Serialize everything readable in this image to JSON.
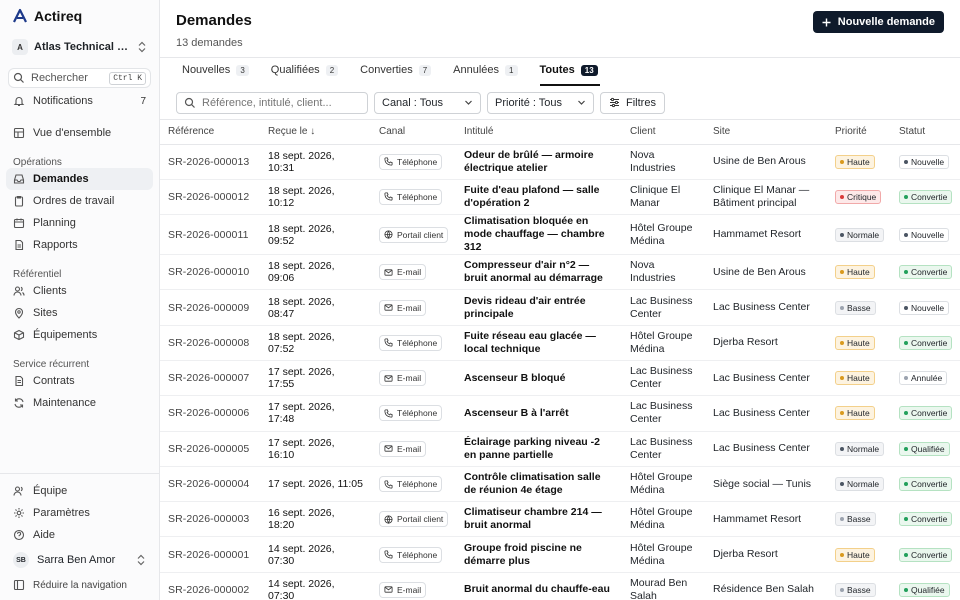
{
  "brand": {
    "name": "Actireq"
  },
  "org": {
    "badge": "A",
    "name": "Atlas Technical Services"
  },
  "search": {
    "label": "Rechercher",
    "shortcut": "Ctrl K"
  },
  "notifications": {
    "label": "Notifications",
    "count": "7"
  },
  "nav": {
    "overview": "Vue d'ensemble",
    "section_ops": "Opérations",
    "demandes": "Demandes",
    "ordres": "Ordres de travail",
    "planning": "Planning",
    "rapports": "Rapports",
    "section_ref": "Référentiel",
    "clients": "Clients",
    "sites": "Sites",
    "equipements": "Équipements",
    "section_rec": "Service récurrent",
    "contrats": "Contrats",
    "maintenance": "Maintenance",
    "equipe": "Équipe",
    "parametres": "Paramètres",
    "aide": "Aide"
  },
  "user": {
    "initials": "SB",
    "name": "Sarra Ben Amor"
  },
  "collapse_label": "Réduire la navigation",
  "header": {
    "title": "Demandes",
    "subtitle": "13 demandes",
    "new_button": "Nouvelle demande"
  },
  "tabs": [
    {
      "label": "Nouvelles",
      "count": "3"
    },
    {
      "label": "Qualifiées",
      "count": "2"
    },
    {
      "label": "Converties",
      "count": "7"
    },
    {
      "label": "Annulées",
      "count": "1"
    },
    {
      "label": "Toutes",
      "count": "13"
    }
  ],
  "filters": {
    "search_placeholder": "Référence, intitulé, client...",
    "canal": "Canal : Tous",
    "priorite": "Priorité : Tous",
    "filtres": "Filtres"
  },
  "columns": {
    "reference": "Référence",
    "recu": "Reçue le",
    "canal": "Canal",
    "intitule": "Intitulé",
    "client": "Client",
    "site": "Site",
    "priorite": "Priorité",
    "statut": "Statut"
  },
  "colors": {
    "haute_bg": "#fdf3e0",
    "haute_border": "#f3d08a",
    "haute_dot": "#d99a1e",
    "critique_bg": "#fde9e9",
    "critique_border": "#f1a9a9",
    "critique_dot": "#d93a3a",
    "normale_bg": "#f3f4f6",
    "normale_border": "#dcdfe3",
    "normale_dot": "#4b5563",
    "basse_bg": "#f3f4f6",
    "basse_border": "#dcdfe3",
    "basse_dot": "#9ca3af",
    "nouvelle_dot": "#4b5563",
    "convertie_bg": "#eaf7ee",
    "convertie_border": "#b5e2c2",
    "convertie_dot": "#22a05b",
    "annulee_dot": "#9ca3af",
    "qualifiee_bg": "#eaf7ee",
    "qualifiee_border": "#b5e2c2",
    "qualifiee_dot": "#22a05b"
  },
  "rows": [
    {
      "ref": "SR-2026-000013",
      "date": "18 sept. 2026, 10:31",
      "canal": "Téléphone",
      "canal_icon": "phone-icon",
      "title": "Odeur de brûlé — armoire électrique atelier",
      "client": "Nova Industries",
      "site": "Usine de Ben Arous",
      "priority": "Haute",
      "priority_key": "haute",
      "status": "Nouvelle",
      "status_key": "nouvelle"
    },
    {
      "ref": "SR-2026-000012",
      "date": "18 sept. 2026, 10:12",
      "canal": "Téléphone",
      "canal_icon": "phone-icon",
      "title": "Fuite d'eau plafond — salle d'opération 2",
      "client": "Clinique El Manar",
      "site": "Clinique El Manar — Bâtiment principal",
      "priority": "Critique",
      "priority_key": "critique",
      "status": "Convertie",
      "status_key": "convertie"
    },
    {
      "ref": "SR-2026-000011",
      "date": "18 sept. 2026, 09:52",
      "canal": "Portail client",
      "canal_icon": "globe-icon",
      "title": "Climatisation bloquée en mode chauffage — chambre 312",
      "client": "Hôtel Groupe Médina",
      "site": "Hammamet Resort",
      "priority": "Normale",
      "priority_key": "normale",
      "status": "Nouvelle",
      "status_key": "nouvelle"
    },
    {
      "ref": "SR-2026-000010",
      "date": "18 sept. 2026, 09:06",
      "canal": "E-mail",
      "canal_icon": "mail-icon",
      "title": "Compresseur d'air n°2 — bruit anormal au démarrage",
      "client": "Nova Industries",
      "site": "Usine de Ben Arous",
      "priority": "Haute",
      "priority_key": "haute",
      "status": "Convertie",
      "status_key": "convertie"
    },
    {
      "ref": "SR-2026-000009",
      "date": "18 sept. 2026, 08:47",
      "canal": "E-mail",
      "canal_icon": "mail-icon",
      "title": "Devis rideau d'air entrée principale",
      "client": "Lac Business Center",
      "site": "Lac Business Center",
      "priority": "Basse",
      "priority_key": "basse",
      "status": "Nouvelle",
      "status_key": "nouvelle"
    },
    {
      "ref": "SR-2026-000008",
      "date": "18 sept. 2026, 07:52",
      "canal": "Téléphone",
      "canal_icon": "phone-icon",
      "title": "Fuite réseau eau glacée — local technique",
      "client": "Hôtel Groupe Médina",
      "site": "Djerba Resort",
      "priority": "Haute",
      "priority_key": "haute",
      "status": "Convertie",
      "status_key": "convertie"
    },
    {
      "ref": "SR-2026-000007",
      "date": "17 sept. 2026, 17:55",
      "canal": "E-mail",
      "canal_icon": "mail-icon",
      "title": "Ascenseur B bloqué",
      "client": "Lac Business Center",
      "site": "Lac Business Center",
      "priority": "Haute",
      "priority_key": "haute",
      "status": "Annulée",
      "status_key": "annulee"
    },
    {
      "ref": "SR-2026-000006",
      "date": "17 sept. 2026, 17:48",
      "canal": "Téléphone",
      "canal_icon": "phone-icon",
      "title": "Ascenseur B à l'arrêt",
      "client": "Lac Business Center",
      "site": "Lac Business Center",
      "priority": "Haute",
      "priority_key": "haute",
      "status": "Convertie",
      "status_key": "convertie"
    },
    {
      "ref": "SR-2026-000005",
      "date": "17 sept. 2026, 16:10",
      "canal": "E-mail",
      "canal_icon": "mail-icon",
      "title": "Éclairage parking niveau -2 en panne partielle",
      "client": "Lac Business Center",
      "site": "Lac Business Center",
      "priority": "Normale",
      "priority_key": "normale",
      "status": "Qualifiée",
      "status_key": "qualifiee"
    },
    {
      "ref": "SR-2026-000004",
      "date": "17 sept. 2026, 11:05",
      "canal": "Téléphone",
      "canal_icon": "phone-icon",
      "title": "Contrôle climatisation salle de réunion 4e étage",
      "client": "Hôtel Groupe Médina",
      "site": "Siège social — Tunis",
      "priority": "Normale",
      "priority_key": "normale",
      "status": "Convertie",
      "status_key": "convertie"
    },
    {
      "ref": "SR-2026-000003",
      "date": "16 sept. 2026, 18:20",
      "canal": "Portail client",
      "canal_icon": "globe-icon",
      "title": "Climatiseur chambre 214 — bruit anormal",
      "client": "Hôtel Groupe Médina",
      "site": "Hammamet Resort",
      "priority": "Basse",
      "priority_key": "basse",
      "status": "Convertie",
      "status_key": "convertie"
    },
    {
      "ref": "SR-2026-000001",
      "date": "14 sept. 2026, 07:30",
      "canal": "Téléphone",
      "canal_icon": "phone-icon",
      "title": "Groupe froid piscine ne démarre plus",
      "client": "Hôtel Groupe Médina",
      "site": "Djerba Resort",
      "priority": "Haute",
      "priority_key": "haute",
      "status": "Convertie",
      "status_key": "convertie"
    },
    {
      "ref": "SR-2026-000002",
      "date": "14 sept. 2026, 07:30",
      "canal": "E-mail",
      "canal_icon": "mail-icon",
      "title": "Bruit anormal du chauffe-eau",
      "client": "Mourad Ben Salah",
      "site": "Résidence Ben Salah",
      "priority": "Basse",
      "priority_key": "basse",
      "status": "Qualifiée",
      "status_key": "qualifiee"
    }
  ]
}
